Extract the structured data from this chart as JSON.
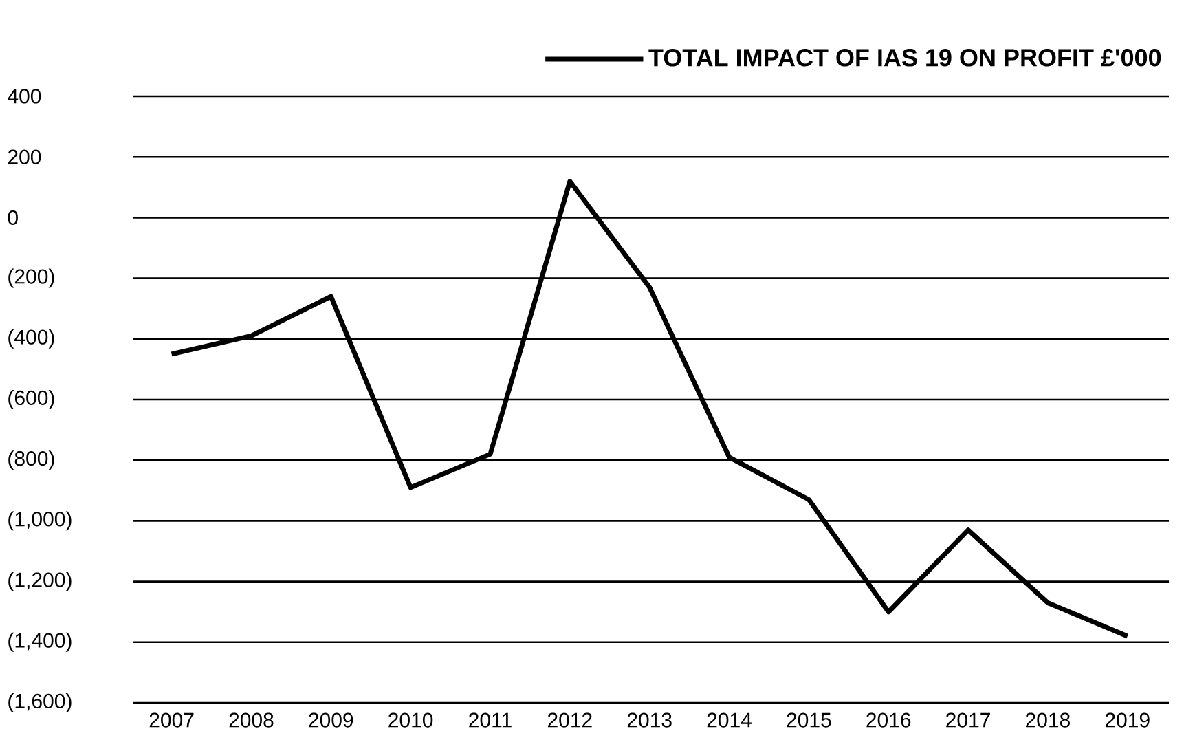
{
  "chart_data": {
    "type": "line",
    "categories": [
      "2007",
      "2008",
      "2009",
      "2010",
      "2011",
      "2012",
      "2013",
      "2014",
      "2015",
      "2016",
      "2017",
      "2018",
      "2019"
    ],
    "series": [
      {
        "name": "TOTAL IMPACT OF IAS 19 ON PROFIT £'000",
        "color": "#000000",
        "values": [
          -450,
          -390,
          -260,
          -890,
          -780,
          120,
          -230,
          -790,
          -930,
          -1300,
          -1030,
          -1270,
          -1380
        ]
      }
    ],
    "ylim": [
      -1600,
      400
    ],
    "yticks": [
      400,
      200,
      0,
      {
        "value": -200,
        "label": "(200)"
      },
      {
        "value": -400,
        "label": "(400)"
      },
      {
        "value": -600,
        "label": "(600)"
      },
      {
        "value": -800,
        "label": "(800)"
      },
      {
        "value": -1000,
        "label": "(1,000)"
      },
      {
        "value": -1200,
        "label": "(1,200)"
      },
      {
        "value": -1400,
        "label": "(1,400)"
      },
      {
        "value": -1600,
        "label": "(1,600)"
      }
    ],
    "grid": "y",
    "legend": "top",
    "marker": "none",
    "line_style": "solid"
  }
}
